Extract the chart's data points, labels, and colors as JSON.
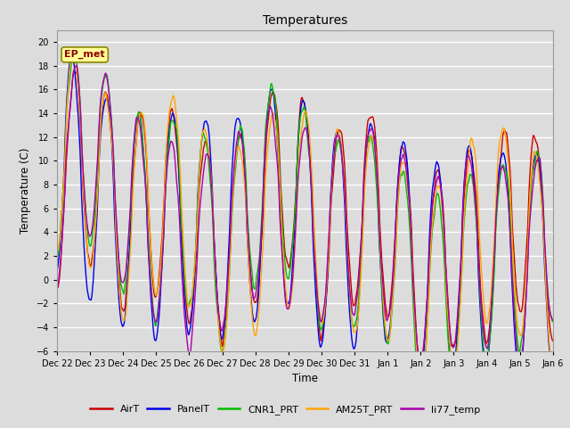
{
  "title": "Temperatures",
  "xlabel": "Time",
  "ylabel": "Temperature (C)",
  "ylim": [
    -6,
    21
  ],
  "yticks": [
    -6,
    -4,
    -2,
    0,
    2,
    4,
    6,
    8,
    10,
    12,
    14,
    16,
    18,
    20
  ],
  "annotation_text": "EP_met",
  "annotation_color": "#8B0000",
  "annotation_bg": "#FFFF99",
  "fig_bg": "#DCDCDC",
  "plot_bg": "#DCDCDC",
  "grid_color": "#FFFFFF",
  "series": {
    "AirT": {
      "color": "#CC0000",
      "lw": 1.0
    },
    "PanelT": {
      "color": "#0000EE",
      "lw": 1.0
    },
    "CNR1_PRT": {
      "color": "#00BB00",
      "lw": 1.0
    },
    "AM25T_PRT": {
      "color": "#FFA500",
      "lw": 1.0
    },
    "li77_temp": {
      "color": "#AA00AA",
      "lw": 1.0
    }
  },
  "x_tick_labels": [
    "Dec 22",
    "Dec 23",
    "Dec 24",
    "Dec 25",
    "Dec 26",
    "Dec 27",
    "Dec 28",
    "Dec 29",
    "Dec 30",
    "Dec 31",
    "Jan 1",
    "Jan 2",
    "Jan 3",
    "Jan 4",
    "Jan 5",
    "Jan 6"
  ],
  "n_points": 1440,
  "n_days": 15
}
